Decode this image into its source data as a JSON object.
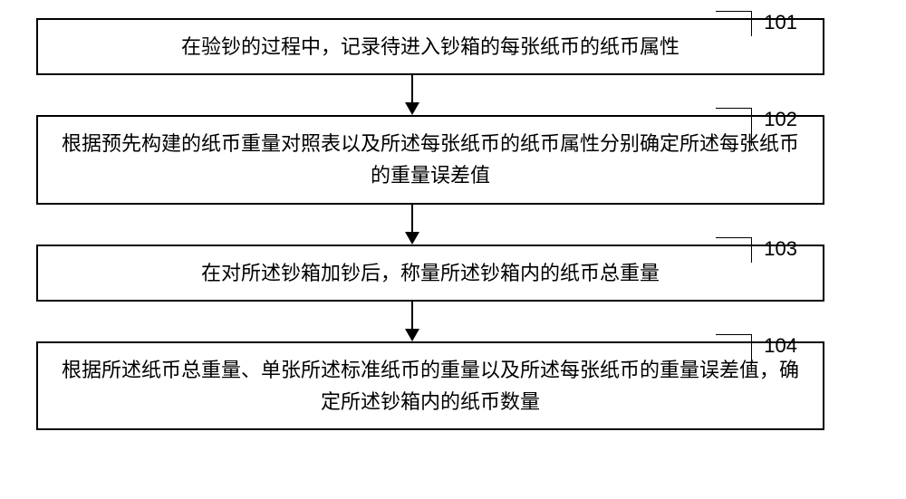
{
  "flowchart": {
    "type": "flowchart",
    "background_color": "#ffffff",
    "border_color": "#000000",
    "text_color": "#000000",
    "border_width": 2,
    "font_size": 22,
    "arrow_color": "#000000",
    "steps": [
      {
        "id": "101",
        "text": "在验钞的过程中，记录待进入钞箱的每张纸币的纸币属性",
        "lines": 1
      },
      {
        "id": "102",
        "text": "根据预先构建的纸币重量对照表以及所述每张纸币的纸币属性分别确定所述每张纸币的重量误差值",
        "lines": 2
      },
      {
        "id": "103",
        "text": "在对所述钞箱加钞后，称量所述钞箱内的纸币总重量",
        "lines": 1
      },
      {
        "id": "104",
        "text": "根据所述纸币总重量、单张所述标准纸币的重量以及所述每张纸币的重量误差值，确定所述钞箱内的纸币数量",
        "lines": 2
      }
    ]
  }
}
